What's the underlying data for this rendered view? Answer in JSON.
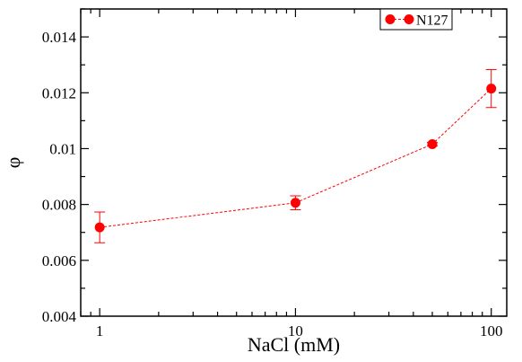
{
  "chart_data": {
    "type": "line",
    "xscale": "log",
    "xlabel": "NaCl (mM)",
    "ylabel": "φ",
    "xlim": [
      0.8,
      120
    ],
    "ylim": [
      0.004,
      0.015
    ],
    "x_ticks": [
      1,
      10,
      100
    ],
    "x_tick_labels": [
      "1",
      "10",
      "100"
    ],
    "y_ticks": [
      0.004,
      0.006,
      0.008,
      0.01,
      0.012,
      0.014
    ],
    "y_tick_labels": [
      "0.004",
      "0.006",
      "0.008",
      "0.01",
      "0.012",
      "0.014"
    ],
    "legend_position": "top-right",
    "grid": false,
    "series": [
      {
        "name": "N127",
        "color": "#ff0000",
        "x": [
          1,
          10,
          50,
          100
        ],
        "y": [
          0.00718,
          0.00806,
          0.01016,
          0.01215
        ],
        "err": [
          0.00055,
          0.00025,
          6e-05,
          0.00068
        ]
      }
    ]
  }
}
